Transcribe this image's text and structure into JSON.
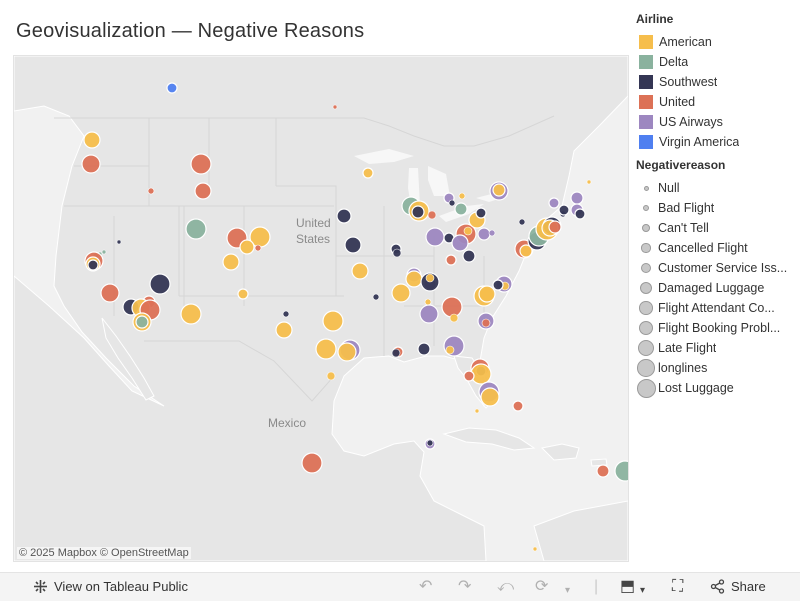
{
  "title": "Geovisualization — Negative Reasons",
  "map": {
    "attribution": "© 2025 Mapbox © OpenStreetMap",
    "labels": {
      "country1_line1": "United",
      "country1_line2": "States",
      "country2": "Mexico"
    }
  },
  "colors": {
    "American": "#f6be4c",
    "Delta": "#8ab29e",
    "Southwest": "#343654",
    "United": "#dc7156",
    "US Airways": "#9d87c0",
    "Virgin America": "#4f7ff0",
    "land": "#e8e8e8",
    "water": "#ffffff"
  },
  "legend": {
    "airline_title": "Airline",
    "airlines": [
      "American",
      "Delta",
      "Southwest",
      "United",
      "US Airways",
      "Virgin America"
    ],
    "reason_title": "Negativereason",
    "reasons": [
      "Null",
      "Bad Flight",
      "Can't Tell",
      "Cancelled Flight",
      "Customer Service Iss...",
      "Damaged Luggage",
      "Flight Attendant Co...",
      "Flight Booking Probl...",
      "Late Flight",
      "longlines",
      "Lost Luggage"
    ]
  },
  "toolbar": {
    "view_label": "View on Tableau Public",
    "share_label": "Share",
    "icons": [
      "undo-icon",
      "redo-icon",
      "revert-icon",
      "refresh-icon",
      "download-icon",
      "fullscreen-icon",
      "share-icon"
    ]
  }
}
